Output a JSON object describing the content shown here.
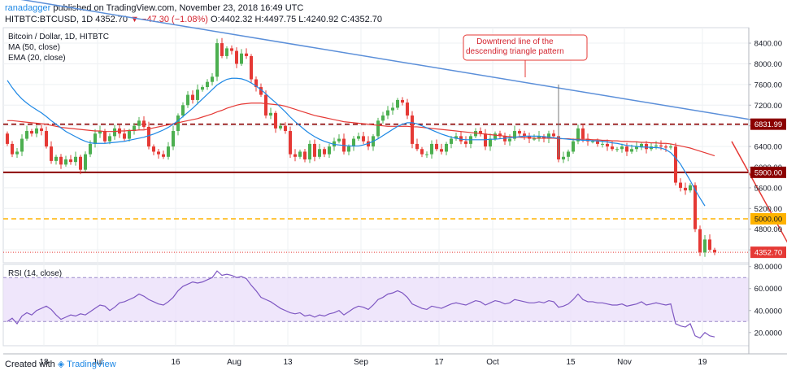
{
  "header": {
    "author": "ranadagger",
    "published": "published on TradingView.com, November 23, 2018 16:49 UTC",
    "symbol": "HITBTC:BTCUSD, 1D",
    "last": "4352.70",
    "change": "▼ −47.30 (−1.08%)",
    "ohlc": "O:4402.32  H:4497.75  L:4240.92  C:4352.70"
  },
  "legend": {
    "title": "Bitcoin / Dollar, 1D, HITBTC",
    "ma": "MA (50, close)",
    "ema": "EMA (20, close)",
    "rsi": "RSI (14, close)"
  },
  "annotation": {
    "line1": "Downtrend line of the",
    "line2": "descending triangle pattern"
  },
  "footer": {
    "created": "Created with",
    "brand": "TradingView"
  },
  "colors": {
    "up": "#4caf50",
    "down": "#e53935",
    "ma": "#e53935",
    "ema": "#1e88e5",
    "trendline": "#5b8fd9",
    "red_level": "#8b0000",
    "orange_level": "#ffb300",
    "rsi": "#7e57c2"
  },
  "chart_data": [
    {
      "type": "candlestick",
      "title": "Bitcoin / Dollar, 1D, HITBTC",
      "x_tick_labels": [
        "18",
        "Jul",
        "16",
        "Aug",
        "13",
        "Sep",
        "17",
        "Oct",
        "15",
        "Nov",
        "19"
      ],
      "y_tick_labels": [
        "8400.00",
        "8000.00",
        "7600.00",
        "7200.00",
        "6800.00",
        "6400.00",
        "6000.00",
        "5600.00",
        "5200.00",
        "4800.00",
        "4400.00"
      ],
      "ylim": [
        4150,
        8700
      ],
      "price_labels": [
        {
          "text": "6831.99",
          "value": 6831.99
        },
        {
          "text": "5900.00",
          "value": 5900
        },
        {
          "text": "5000.00",
          "value": 5000
        },
        {
          "text": "4352.70",
          "value": 4352.7
        }
      ],
      "horizontal_levels": [
        {
          "value": 6831.99,
          "style": "dashed"
        },
        {
          "value": 5900,
          "style": "solid"
        },
        {
          "value": 5000,
          "style": "dashed"
        },
        {
          "value": 4352.7,
          "style": "dotted"
        }
      ],
      "trendlines": [
        {
          "from": [
            0,
            9250
          ],
          "to": [
            155,
            6880
          ],
          "name": "Downtrend line of the descending triangle pattern"
        },
        {
          "from": [
            149,
            6450
          ],
          "to": [
            161,
            4360
          ]
        }
      ],
      "close": [
        6450,
        6250,
        6300,
        6550,
        6700,
        6650,
        6750,
        6700,
        6400,
        6120,
        6200,
        6050,
        6150,
        6100,
        6200,
        5950,
        6250,
        6450,
        6650,
        6700,
        6500,
        6600,
        6750,
        6650,
        6550,
        6700,
        6800,
        6900,
        6780,
        6400,
        6300,
        6250,
        6200,
        6400,
        6700,
        7000,
        7200,
        7400,
        7300,
        7500,
        7550,
        7650,
        7750,
        8400,
        8150,
        8300,
        8250,
        8000,
        8200,
        8150,
        7700,
        7550,
        7400,
        7000,
        7050,
        6750,
        6800,
        6700,
        6250,
        6200,
        6300,
        6150,
        6450,
        6200,
        6350,
        6250,
        6400,
        6500,
        6550,
        6300,
        6400,
        6550,
        6600,
        6500,
        6400,
        6600,
        6900,
        7000,
        7100,
        7150,
        7300,
        7250,
        7000,
        6450,
        6350,
        6250,
        6250,
        6450,
        6350,
        6300,
        6450,
        6550,
        6600,
        6500,
        6450,
        6600,
        6700,
        6650,
        6400,
        6550,
        6650,
        6600,
        6500,
        6550,
        6700,
        6650,
        6600,
        6550,
        6550,
        6600,
        6550,
        6650,
        6600,
        6150,
        6200,
        6300,
        6500,
        6750,
        6550,
        6500,
        6500,
        6450,
        6450,
        6400,
        6350,
        6350,
        6400,
        6300,
        6350,
        6400,
        6450,
        6350,
        6400,
        6420,
        6400,
        6380,
        6400,
        5700,
        5600,
        5550,
        5650,
        4800,
        4350,
        4600,
        4400,
        4352.7
      ],
      "ma50": [
        6900,
        6900,
        6890,
        6880,
        6870,
        6860,
        6850,
        6840,
        6830,
        6810,
        6790,
        6770,
        6760,
        6750,
        6740,
        6730,
        6720,
        6710,
        6700,
        6700,
        6690,
        6690,
        6690,
        6700,
        6700,
        6710,
        6710,
        6720,
        6720,
        6740,
        6760,
        6780,
        6800,
        6820,
        6840,
        6860,
        6880,
        6900,
        6920,
        6940,
        6970,
        7000,
        7030,
        7070,
        7100,
        7140,
        7170,
        7200,
        7220,
        7230,
        7240,
        7240,
        7240,
        7230,
        7220,
        7210,
        7200,
        7180,
        7150,
        7120,
        7090,
        7060,
        7030,
        7000,
        6980,
        6960,
        6940,
        6920,
        6900,
        6880,
        6870,
        6860,
        6850,
        6840,
        6830,
        6820,
        6810,
        6800,
        6790,
        6790,
        6790,
        6790,
        6790,
        6780,
        6780,
        6770,
        6760,
        6750,
        6740,
        6730,
        6720,
        6710,
        6700,
        6690,
        6680,
        6670,
        6660,
        6650,
        6640,
        6630,
        6620,
        6610,
        6600,
        6590,
        6580,
        6580,
        6570,
        6570,
        6560,
        6560,
        6560,
        6560,
        6560,
        6550,
        6550,
        6550,
        6540,
        6540,
        6540,
        6540,
        6530,
        6530,
        6520,
        6520,
        6510,
        6510,
        6500,
        6500,
        6490,
        6490,
        6480,
        6480,
        6470,
        6470,
        6460,
        6460,
        6450,
        6430,
        6410,
        6390,
        6370,
        6340,
        6310,
        6280,
        6250,
        6220
      ],
      "ema20": [
        7680,
        7540,
        7420,
        7320,
        7240,
        7170,
        7110,
        7050,
        6980,
        6900,
        6830,
        6760,
        6690,
        6640,
        6590,
        6540,
        6500,
        6470,
        6460,
        6460,
        6460,
        6470,
        6480,
        6490,
        6500,
        6520,
        6540,
        6560,
        6580,
        6610,
        6640,
        6680,
        6720,
        6770,
        6830,
        6900,
        6980,
        7060,
        7140,
        7230,
        7320,
        7410,
        7500,
        7590,
        7650,
        7700,
        7720,
        7720,
        7710,
        7680,
        7630,
        7570,
        7500,
        7420,
        7330,
        7250,
        7160,
        7070,
        6970,
        6880,
        6800,
        6720,
        6650,
        6590,
        6540,
        6500,
        6470,
        6440,
        6430,
        6420,
        6410,
        6410,
        6410,
        6430,
        6460,
        6500,
        6550,
        6610,
        6670,
        6730,
        6790,
        6830,
        6860,
        6860,
        6840,
        6800,
        6760,
        6720,
        6680,
        6640,
        6610,
        6580,
        6560,
        6540,
        6530,
        6530,
        6530,
        6530,
        6530,
        6540,
        6540,
        6550,
        6560,
        6570,
        6580,
        6590,
        6600,
        6600,
        6600,
        6600,
        6590,
        6580,
        6570,
        6560,
        6550,
        6540,
        6530,
        6530,
        6520,
        6520,
        6510,
        6510,
        6500,
        6490,
        6470,
        6460,
        6440,
        6420,
        6410,
        6400,
        6390,
        6390,
        6380,
        6380,
        6370,
        6340,
        6280,
        6180,
        6060,
        5900,
        5740,
        5560,
        5400,
        5250
      ],
      "ma50_label": "MA (50, close)",
      "ema20_label": "EMA (20, close)"
    },
    {
      "type": "line",
      "title": "RSI (14, close)",
      "y_tick_labels": [
        "80.0000",
        "60.0000",
        "40.0000",
        "20.0000"
      ],
      "ylim": [
        8,
        82
      ],
      "band": [
        30,
        70
      ],
      "values": [
        30,
        33,
        28,
        35,
        38,
        36,
        40,
        42,
        44,
        41,
        36,
        32,
        34,
        36,
        35,
        37,
        36,
        39,
        42,
        45,
        44,
        40,
        43,
        47,
        48,
        50,
        52,
        55,
        53,
        50,
        48,
        46,
        45,
        48,
        52,
        58,
        62,
        64,
        66,
        65,
        66,
        68,
        70,
        76,
        72,
        73,
        72,
        70,
        71,
        69,
        63,
        58,
        52,
        50,
        48,
        45,
        42,
        40,
        38,
        37,
        38,
        35,
        36,
        34,
        36,
        35,
        37,
        38,
        40,
        36,
        39,
        42,
        44,
        43,
        41,
        45,
        50,
        52,
        55,
        56,
        58,
        56,
        52,
        46,
        44,
        42,
        41,
        44,
        43,
        42,
        44,
        46,
        47,
        46,
        45,
        47,
        49,
        48,
        45,
        47,
        49,
        48,
        46,
        47,
        50,
        49,
        48,
        47,
        47,
        48,
        47,
        49,
        48,
        43,
        44,
        46,
        50,
        55,
        50,
        48,
        48,
        47,
        47,
        46,
        45,
        45,
        46,
        44,
        45,
        46,
        48,
        45,
        46,
        47,
        46,
        45,
        46,
        28,
        26,
        25,
        28,
        17,
        15,
        20,
        17,
        16
      ]
    }
  ]
}
